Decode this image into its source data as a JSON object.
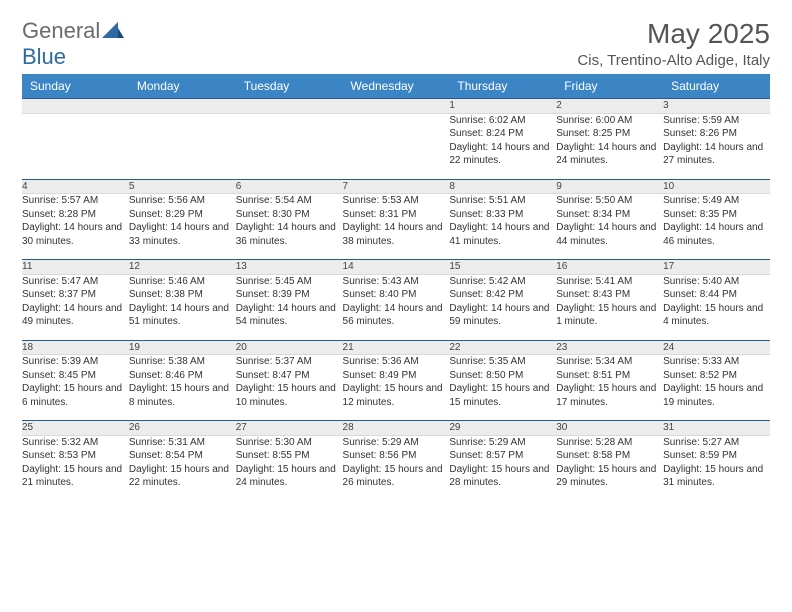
{
  "logo": {
    "text_gen": "General",
    "text_blue": "Blue"
  },
  "title": "May 2025",
  "subtitle": "Cis, Trentino-Alto Adige, Italy",
  "colors": {
    "header_bg": "#3b85c4",
    "header_text": "#ffffff",
    "daynum_bg": "#ececec",
    "daynum_border_top": "#2a5a8a",
    "logo_gray": "#6b6b6b",
    "logo_blue": "#2e6aa3"
  },
  "weekdays": [
    "Sunday",
    "Monday",
    "Tuesday",
    "Wednesday",
    "Thursday",
    "Friday",
    "Saturday"
  ],
  "weeks": [
    {
      "nums": [
        "",
        "",
        "",
        "",
        "1",
        "2",
        "3"
      ],
      "cells": [
        {
          "sunrise": "",
          "sunset": "",
          "daylight": ""
        },
        {
          "sunrise": "",
          "sunset": "",
          "daylight": ""
        },
        {
          "sunrise": "",
          "sunset": "",
          "daylight": ""
        },
        {
          "sunrise": "",
          "sunset": "",
          "daylight": ""
        },
        {
          "sunrise": "Sunrise: 6:02 AM",
          "sunset": "Sunset: 8:24 PM",
          "daylight": "Daylight: 14 hours and 22 minutes."
        },
        {
          "sunrise": "Sunrise: 6:00 AM",
          "sunset": "Sunset: 8:25 PM",
          "daylight": "Daylight: 14 hours and 24 minutes."
        },
        {
          "sunrise": "Sunrise: 5:59 AM",
          "sunset": "Sunset: 8:26 PM",
          "daylight": "Daylight: 14 hours and 27 minutes."
        }
      ]
    },
    {
      "nums": [
        "4",
        "5",
        "6",
        "7",
        "8",
        "9",
        "10"
      ],
      "cells": [
        {
          "sunrise": "Sunrise: 5:57 AM",
          "sunset": "Sunset: 8:28 PM",
          "daylight": "Daylight: 14 hours and 30 minutes."
        },
        {
          "sunrise": "Sunrise: 5:56 AM",
          "sunset": "Sunset: 8:29 PM",
          "daylight": "Daylight: 14 hours and 33 minutes."
        },
        {
          "sunrise": "Sunrise: 5:54 AM",
          "sunset": "Sunset: 8:30 PM",
          "daylight": "Daylight: 14 hours and 36 minutes."
        },
        {
          "sunrise": "Sunrise: 5:53 AM",
          "sunset": "Sunset: 8:31 PM",
          "daylight": "Daylight: 14 hours and 38 minutes."
        },
        {
          "sunrise": "Sunrise: 5:51 AM",
          "sunset": "Sunset: 8:33 PM",
          "daylight": "Daylight: 14 hours and 41 minutes."
        },
        {
          "sunrise": "Sunrise: 5:50 AM",
          "sunset": "Sunset: 8:34 PM",
          "daylight": "Daylight: 14 hours and 44 minutes."
        },
        {
          "sunrise": "Sunrise: 5:49 AM",
          "sunset": "Sunset: 8:35 PM",
          "daylight": "Daylight: 14 hours and 46 minutes."
        }
      ]
    },
    {
      "nums": [
        "11",
        "12",
        "13",
        "14",
        "15",
        "16",
        "17"
      ],
      "cells": [
        {
          "sunrise": "Sunrise: 5:47 AM",
          "sunset": "Sunset: 8:37 PM",
          "daylight": "Daylight: 14 hours and 49 minutes."
        },
        {
          "sunrise": "Sunrise: 5:46 AM",
          "sunset": "Sunset: 8:38 PM",
          "daylight": "Daylight: 14 hours and 51 minutes."
        },
        {
          "sunrise": "Sunrise: 5:45 AM",
          "sunset": "Sunset: 8:39 PM",
          "daylight": "Daylight: 14 hours and 54 minutes."
        },
        {
          "sunrise": "Sunrise: 5:43 AM",
          "sunset": "Sunset: 8:40 PM",
          "daylight": "Daylight: 14 hours and 56 minutes."
        },
        {
          "sunrise": "Sunrise: 5:42 AM",
          "sunset": "Sunset: 8:42 PM",
          "daylight": "Daylight: 14 hours and 59 minutes."
        },
        {
          "sunrise": "Sunrise: 5:41 AM",
          "sunset": "Sunset: 8:43 PM",
          "daylight": "Daylight: 15 hours and 1 minute."
        },
        {
          "sunrise": "Sunrise: 5:40 AM",
          "sunset": "Sunset: 8:44 PM",
          "daylight": "Daylight: 15 hours and 4 minutes."
        }
      ]
    },
    {
      "nums": [
        "18",
        "19",
        "20",
        "21",
        "22",
        "23",
        "24"
      ],
      "cells": [
        {
          "sunrise": "Sunrise: 5:39 AM",
          "sunset": "Sunset: 8:45 PM",
          "daylight": "Daylight: 15 hours and 6 minutes."
        },
        {
          "sunrise": "Sunrise: 5:38 AM",
          "sunset": "Sunset: 8:46 PM",
          "daylight": "Daylight: 15 hours and 8 minutes."
        },
        {
          "sunrise": "Sunrise: 5:37 AM",
          "sunset": "Sunset: 8:47 PM",
          "daylight": "Daylight: 15 hours and 10 minutes."
        },
        {
          "sunrise": "Sunrise: 5:36 AM",
          "sunset": "Sunset: 8:49 PM",
          "daylight": "Daylight: 15 hours and 12 minutes."
        },
        {
          "sunrise": "Sunrise: 5:35 AM",
          "sunset": "Sunset: 8:50 PM",
          "daylight": "Daylight: 15 hours and 15 minutes."
        },
        {
          "sunrise": "Sunrise: 5:34 AM",
          "sunset": "Sunset: 8:51 PM",
          "daylight": "Daylight: 15 hours and 17 minutes."
        },
        {
          "sunrise": "Sunrise: 5:33 AM",
          "sunset": "Sunset: 8:52 PM",
          "daylight": "Daylight: 15 hours and 19 minutes."
        }
      ]
    },
    {
      "nums": [
        "25",
        "26",
        "27",
        "28",
        "29",
        "30",
        "31"
      ],
      "cells": [
        {
          "sunrise": "Sunrise: 5:32 AM",
          "sunset": "Sunset: 8:53 PM",
          "daylight": "Daylight: 15 hours and 21 minutes."
        },
        {
          "sunrise": "Sunrise: 5:31 AM",
          "sunset": "Sunset: 8:54 PM",
          "daylight": "Daylight: 15 hours and 22 minutes."
        },
        {
          "sunrise": "Sunrise: 5:30 AM",
          "sunset": "Sunset: 8:55 PM",
          "daylight": "Daylight: 15 hours and 24 minutes."
        },
        {
          "sunrise": "Sunrise: 5:29 AM",
          "sunset": "Sunset: 8:56 PM",
          "daylight": "Daylight: 15 hours and 26 minutes."
        },
        {
          "sunrise": "Sunrise: 5:29 AM",
          "sunset": "Sunset: 8:57 PM",
          "daylight": "Daylight: 15 hours and 28 minutes."
        },
        {
          "sunrise": "Sunrise: 5:28 AM",
          "sunset": "Sunset: 8:58 PM",
          "daylight": "Daylight: 15 hours and 29 minutes."
        },
        {
          "sunrise": "Sunrise: 5:27 AM",
          "sunset": "Sunset: 8:59 PM",
          "daylight": "Daylight: 15 hours and 31 minutes."
        }
      ]
    }
  ]
}
